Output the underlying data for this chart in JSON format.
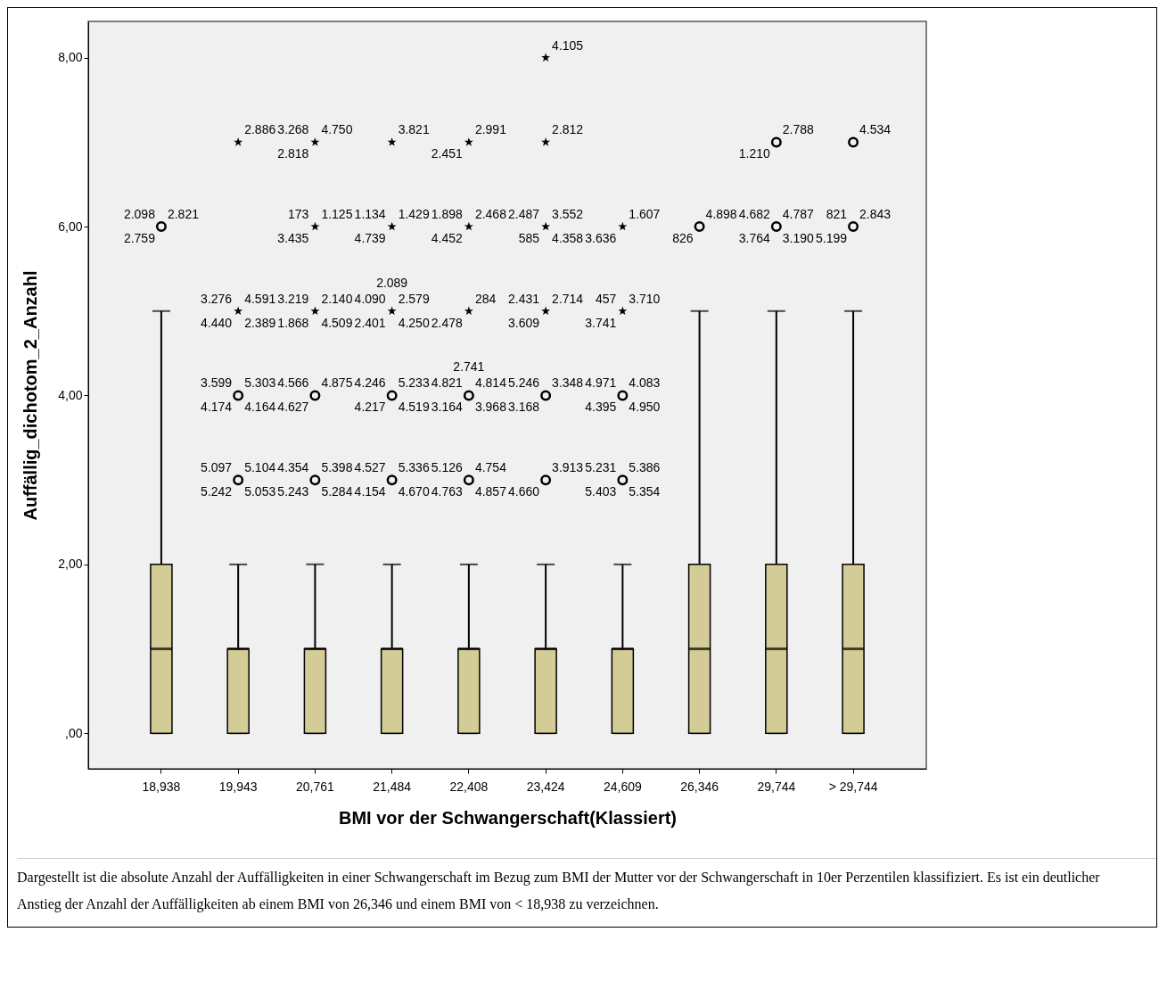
{
  "chart_data": {
    "type": "box",
    "xlabel": "BMI vor der Schwangerschaft(Klassiert)",
    "ylabel": "Auffällig_dichotom_2_Anzahl",
    "categories": [
      "18,938",
      "19,943",
      "20,761",
      "21,484",
      "22,408",
      "23,424",
      "24,609",
      "26,346",
      "29,744",
      "> 29,744"
    ],
    "ylim": [
      -0.42,
      8.43
    ],
    "yticks": [
      {
        "value": 0,
        "label": ",00"
      },
      {
        "value": 2,
        "label": "2,00"
      },
      {
        "value": 4,
        "label": "4,00"
      },
      {
        "value": 6,
        "label": "6,00"
      },
      {
        "value": 8,
        "label": "8,00"
      }
    ],
    "series": [
      {
        "type": "box",
        "color": "#d4cc96",
        "boxes": [
          {
            "low": 0,
            "q1": 0,
            "median": 1,
            "q3": 2,
            "high": 5
          },
          {
            "low": 0,
            "q1": 0,
            "median": 1,
            "q3": 1,
            "high": 2
          },
          {
            "low": 0,
            "q1": 0,
            "median": 1,
            "q3": 1,
            "high": 2
          },
          {
            "low": 0,
            "q1": 0,
            "median": 1,
            "q3": 1,
            "high": 2
          },
          {
            "low": 0,
            "q1": 0,
            "median": 1,
            "q3": 1,
            "high": 2
          },
          {
            "low": 0,
            "q1": 0,
            "median": 1,
            "q3": 1,
            "high": 2
          },
          {
            "low": 0,
            "q1": 0,
            "median": 1,
            "q3": 1,
            "high": 2
          },
          {
            "low": 0,
            "q1": 0,
            "median": 1,
            "q3": 2,
            "high": 5
          },
          {
            "low": 0,
            "q1": 0,
            "median": 1,
            "q3": 2,
            "high": 5
          },
          {
            "low": 0,
            "q1": 0,
            "median": 1,
            "q3": 2,
            "high": 5
          }
        ]
      },
      {
        "type": "scatter",
        "marker": "circle",
        "color": "#000000",
        "x": [
          "18,938",
          "19,943",
          "19,943",
          "20,761",
          "20,761",
          "21,484",
          "21,484",
          "22,408",
          "22,408",
          "23,424",
          "23,424",
          "24,609",
          "24,609",
          "26,346",
          "29,744",
          "29,744",
          "> 29,744",
          "> 29,744"
        ],
        "values": [
          6,
          3,
          4,
          3,
          4,
          3,
          4,
          3,
          4,
          3,
          4,
          3,
          4,
          6,
          6,
          7,
          6,
          7
        ]
      },
      {
        "type": "scatter",
        "marker": "star",
        "color": "#000000",
        "x": [
          "19,943",
          "19,943",
          "20,761",
          "20,761",
          "20,761",
          "21,484",
          "21,484",
          "21,484",
          "22,408",
          "22,408",
          "22,408",
          "23,424",
          "23,424",
          "23,424",
          "23,424",
          "24,609",
          "24,609"
        ],
        "values": [
          5,
          7,
          5,
          6,
          7,
          5,
          6,
          7,
          5,
          6,
          7,
          5,
          6,
          7,
          8,
          5,
          6
        ]
      }
    ],
    "annotations": [
      {
        "text": "2.821",
        "x": "18,938",
        "y": 6
      },
      {
        "text": "2.759",
        "x": "18,938",
        "y": 6
      },
      {
        "text": "2.098",
        "x": "18,938",
        "y": 6
      },
      {
        "text": "2.886",
        "x": "19,943",
        "y": 7
      },
      {
        "text": "4.591",
        "x": "19,943",
        "y": 5
      },
      {
        "text": "4.440",
        "x": "19,943",
        "y": 5
      },
      {
        "text": "3.276",
        "x": "19,943",
        "y": 5
      },
      {
        "text": "2.389",
        "x": "19,943",
        "y": 5
      },
      {
        "text": "5.303",
        "x": "19,943",
        "y": 4
      },
      {
        "text": "4.174",
        "x": "19,943",
        "y": 4
      },
      {
        "text": "3.599",
        "x": "19,943",
        "y": 4
      },
      {
        "text": "4.164",
        "x": "19,943",
        "y": 4
      },
      {
        "text": "5.104",
        "x": "19,943",
        "y": 3
      },
      {
        "text": "5.242",
        "x": "19,943",
        "y": 3
      },
      {
        "text": "5.097",
        "x": "19,943",
        "y": 3
      },
      {
        "text": "5.053",
        "x": "19,943",
        "y": 3
      },
      {
        "text": "4.750",
        "x": "20,761",
        "y": 7
      },
      {
        "text": "2.818",
        "x": "20,761",
        "y": 7
      },
      {
        "text": "3.268",
        "x": "20,761",
        "y": 7
      },
      {
        "text": "1.125",
        "x": "20,761",
        "y": 6
      },
      {
        "text": "3.435",
        "x": "20,761",
        "y": 6
      },
      {
        "text": "173",
        "x": "20,761",
        "y": 6
      },
      {
        "text": "2.140",
        "x": "20,761",
        "y": 5
      },
      {
        "text": "1.868",
        "x": "20,761",
        "y": 5
      },
      {
        "text": "3.219",
        "x": "20,761",
        "y": 5
      },
      {
        "text": "4.509",
        "x": "20,761",
        "y": 5
      },
      {
        "text": "4.875",
        "x": "20,761",
        "y": 4
      },
      {
        "text": "4.627",
        "x": "20,761",
        "y": 4
      },
      {
        "text": "4.566",
        "x": "20,761",
        "y": 4
      },
      {
        "text": "5.398",
        "x": "20,761",
        "y": 3
      },
      {
        "text": "5.243",
        "x": "20,761",
        "y": 3
      },
      {
        "text": "4.354",
        "x": "20,761",
        "y": 3
      },
      {
        "text": "5.284",
        "x": "20,761",
        "y": 3
      },
      {
        "text": "3.821",
        "x": "21,484",
        "y": 7
      },
      {
        "text": "1.429",
        "x": "21,484",
        "y": 6
      },
      {
        "text": "4.739",
        "x": "21,484",
        "y": 6
      },
      {
        "text": "1.134",
        "x": "21,484",
        "y": 6
      },
      {
        "text": "2.579",
        "x": "21,484",
        "y": 5
      },
      {
        "text": "2.401",
        "x": "21,484",
        "y": 5
      },
      {
        "text": "4.090",
        "x": "21,484",
        "y": 5
      },
      {
        "text": "4.250",
        "x": "21,484",
        "y": 5
      },
      {
        "text": "2.089",
        "x": "21,484",
        "y": 5
      },
      {
        "text": "5.233",
        "x": "21,484",
        "y": 4
      },
      {
        "text": "4.217",
        "x": "21,484",
        "y": 4
      },
      {
        "text": "4.246",
        "x": "21,484",
        "y": 4
      },
      {
        "text": "4.519",
        "x": "21,484",
        "y": 4
      },
      {
        "text": "5.336",
        "x": "21,484",
        "y": 3
      },
      {
        "text": "4.154",
        "x": "21,484",
        "y": 3
      },
      {
        "text": "4.527",
        "x": "21,484",
        "y": 3
      },
      {
        "text": "4.670",
        "x": "21,484",
        "y": 3
      },
      {
        "text": "2.991",
        "x": "22,408",
        "y": 7
      },
      {
        "text": "2.451",
        "x": "22,408",
        "y": 7
      },
      {
        "text": "2.468",
        "x": "22,408",
        "y": 6
      },
      {
        "text": "4.452",
        "x": "22,408",
        "y": 6
      },
      {
        "text": "1.898",
        "x": "22,408",
        "y": 6
      },
      {
        "text": "284",
        "x": "22,408",
        "y": 5
      },
      {
        "text": "2.478",
        "x": "22,408",
        "y": 5
      },
      {
        "text": "4.814",
        "x": "22,408",
        "y": 4
      },
      {
        "text": "3.164",
        "x": "22,408",
        "y": 4
      },
      {
        "text": "4.821",
        "x": "22,408",
        "y": 4
      },
      {
        "text": "3.968",
        "x": "22,408",
        "y": 4
      },
      {
        "text": "2.741",
        "x": "22,408",
        "y": 4
      },
      {
        "text": "4.754",
        "x": "22,408",
        "y": 3
      },
      {
        "text": "4.763",
        "x": "22,408",
        "y": 3
      },
      {
        "text": "5.126",
        "x": "22,408",
        "y": 3
      },
      {
        "text": "4.857",
        "x": "22,408",
        "y": 3
      },
      {
        "text": "4.105",
        "x": "23,424",
        "y": 8
      },
      {
        "text": "2.812",
        "x": "23,424",
        "y": 7
      },
      {
        "text": "3.552",
        "x": "23,424",
        "y": 6
      },
      {
        "text": "585",
        "x": "23,424",
        "y": 6
      },
      {
        "text": "2.487",
        "x": "23,424",
        "y": 6
      },
      {
        "text": "4.358",
        "x": "23,424",
        "y": 6
      },
      {
        "text": "2.714",
        "x": "23,424",
        "y": 5
      },
      {
        "text": "3.609",
        "x": "23,424",
        "y": 5
      },
      {
        "text": "2.431",
        "x": "23,424",
        "y": 5
      },
      {
        "text": "3.348",
        "x": "23,424",
        "y": 4
      },
      {
        "text": "3.168",
        "x": "23,424",
        "y": 4
      },
      {
        "text": "5.246",
        "x": "23,424",
        "y": 4
      },
      {
        "text": "3.913",
        "x": "23,424",
        "y": 3
      },
      {
        "text": "4.660",
        "x": "23,424",
        "y": 3
      },
      {
        "text": "1.607",
        "x": "24,609",
        "y": 6
      },
      {
        "text": "3.636",
        "x": "24,609",
        "y": 6
      },
      {
        "text": "3.710",
        "x": "24,609",
        "y": 5
      },
      {
        "text": "3.741",
        "x": "24,609",
        "y": 5
      },
      {
        "text": "457",
        "x": "24,609",
        "y": 5
      },
      {
        "text": "4.083",
        "x": "24,609",
        "y": 4
      },
      {
        "text": "4.395",
        "x": "24,609",
        "y": 4
      },
      {
        "text": "4.971",
        "x": "24,609",
        "y": 4
      },
      {
        "text": "4.950",
        "x": "24,609",
        "y": 4
      },
      {
        "text": "5.386",
        "x": "24,609",
        "y": 3
      },
      {
        "text": "5.403",
        "x": "24,609",
        "y": 3
      },
      {
        "text": "5.231",
        "x": "24,609",
        "y": 3
      },
      {
        "text": "5.354",
        "x": "24,609",
        "y": 3
      },
      {
        "text": "4.898",
        "x": "26,346",
        "y": 6
      },
      {
        "text": "826",
        "x": "26,346",
        "y": 6
      },
      {
        "text": "2.788",
        "x": "29,744",
        "y": 7
      },
      {
        "text": "1.210",
        "x": "29,744",
        "y": 7
      },
      {
        "text": "4.787",
        "x": "29,744",
        "y": 6
      },
      {
        "text": "3.764",
        "x": "29,744",
        "y": 6
      },
      {
        "text": "4.682",
        "x": "29,744",
        "y": 6
      },
      {
        "text": "3.190",
        "x": "29,744",
        "y": 6
      },
      {
        "text": "4.534",
        "x": "> 29,744",
        "y": 7
      },
      {
        "text": "2.843",
        "x": "> 29,744",
        "y": 6
      },
      {
        "text": "5.199",
        "x": "> 29,744",
        "y": 6
      },
      {
        "text": "821",
        "x": "> 29,744",
        "y": 6
      },
      "Dargestellt ist die absolute Anzahl der Auffälligkeiten in einer Schwangerschaft im Bezug zum BMI der Mutter vor der Schwangerschaft in 10er Perzentilen klassifiziert. Es ist ein deutlicher Anstieg der Anzahl der Auffälligkeiten ab einem BMI von 26,346 und einem BMI von < 18,938 zu verzeichnen."
    ]
  }
}
